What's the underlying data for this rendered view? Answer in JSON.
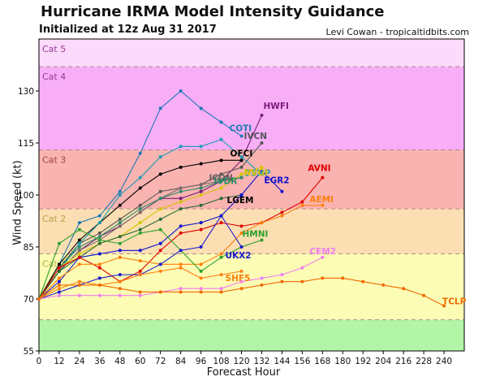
{
  "header": {
    "title": "Hurricane IRMA Model Intensity Guidance",
    "subtitle": "Initialized at 12z Aug 31 2017",
    "credit": "Levi Cowan - tropicaltidbits.com"
  },
  "chart_data": {
    "type": "line",
    "xlabel": "Forecast Hour",
    "ylabel": "Wind Speed (kt)",
    "xlim": [
      0,
      252
    ],
    "ylim": [
      55,
      145
    ],
    "xticks": [
      0,
      12,
      24,
      36,
      48,
      60,
      72,
      84,
      96,
      108,
      120,
      132,
      144,
      156,
      168,
      180,
      192,
      204,
      216,
      228,
      240
    ],
    "yticks": [
      55,
      70,
      85,
      100,
      115,
      130
    ],
    "bands": [
      {
        "label": "",
        "from": 55,
        "to": 64,
        "color": "#b2f5a7"
      },
      {
        "label": "Cat 1",
        "from": 64,
        "to": 83,
        "color": "#fcfcb5",
        "label_color": "#b8b04a"
      },
      {
        "label": "Cat 2",
        "from": 83,
        "to": 96,
        "color": "#fbdfb2",
        "label_color": "#b8a04a"
      },
      {
        "label": "Cat 3",
        "from": 96,
        "to": 113,
        "color": "#f9b3b0",
        "label_color": "#a04545"
      },
      {
        "label": "Cat 4",
        "from": 113,
        "to": 137,
        "color": "#f7aef7",
        "label_color": "#9a3a9a"
      },
      {
        "label": "Cat 5",
        "from": 137,
        "to": 145,
        "color": "#fbdafb",
        "label_color": "#9a3a9a"
      }
    ],
    "series": [
      {
        "name": "COTI",
        "color": "#1f77b4",
        "label_color": "#1f77b4",
        "x": [
          0,
          12,
          24,
          36,
          48,
          60,
          72,
          84,
          96,
          108,
          120
        ],
        "y": [
          70,
          80,
          92,
          94,
          101,
          112,
          125,
          130,
          125,
          121,
          117
        ]
      },
      {
        "name": "HWFI",
        "color": "#7a1a7a",
        "label_color": "#7a1a7a",
        "x": [
          0,
          12,
          24,
          36,
          48,
          60,
          72,
          84,
          96,
          108,
          120,
          132
        ],
        "y": [
          70,
          78,
          84,
          88,
          91,
          95,
          99,
          99,
          101,
          104,
          110,
          123
        ]
      },
      {
        "name": "IVCN",
        "color": "#555555",
        "label_color": "#555555",
        "x": [
          0,
          12,
          24,
          36,
          48,
          60,
          72,
          84,
          96,
          108,
          120,
          132
        ],
        "y": [
          70,
          79,
          86,
          89,
          93,
          97,
          101,
          102,
          103,
          106,
          108,
          115
        ]
      },
      {
        "name": "OFCI",
        "color": "#000000",
        "label_color": "#000000",
        "x": [
          0,
          12,
          24,
          36,
          48,
          60,
          72,
          84,
          96,
          108,
          120
        ],
        "y": [
          70,
          80,
          87,
          92,
          97,
          102,
          106,
          108,
          109,
          110,
          110
        ]
      },
      {
        "name": "DSHP",
        "color": "#1f9bb4",
        "label_color": "#1f9bb4",
        "x": [
          0,
          12,
          24,
          36,
          48,
          60,
          72,
          84,
          96,
          108,
          120,
          132
        ],
        "y": [
          70,
          78,
          86,
          92,
          100,
          105,
          111,
          114,
          114,
          116,
          111,
          106
        ]
      },
      {
        "name": "ICON",
        "color": "#7a6a6a",
        "label_color": "#6a5a5a",
        "x": [
          0,
          12,
          24,
          36,
          48,
          60,
          72,
          84,
          96,
          108,
          120
        ],
        "y": [
          70,
          78,
          84,
          87,
          91,
          95,
          99,
          102,
          103,
          104,
          105
        ]
      },
      {
        "name": "IVDR",
        "color": "#2a8a6a",
        "label_color": "#2a8a6a",
        "x": [
          0,
          12,
          24,
          36,
          48,
          60,
          72,
          84,
          96,
          108,
          120
        ],
        "y": [
          70,
          79,
          85,
          88,
          92,
          96,
          99,
          101,
          102,
          104,
          105
        ]
      },
      {
        "name": "NVGI",
        "color": "#d4c400",
        "label_color": "#d4c400",
        "x": [
          0,
          12,
          24,
          36,
          48,
          60,
          72,
          84,
          96,
          108,
          120,
          132
        ],
        "y": [
          70,
          79,
          83,
          86,
          88,
          92,
          96,
          98,
          100,
          102,
          106,
          108
        ]
      },
      {
        "name": "LGEM",
        "color": "#2a6a3a",
        "label_color": "#000000",
        "x": [
          0,
          12,
          24,
          36,
          48,
          60,
          72,
          84,
          96,
          108,
          120
        ],
        "y": [
          70,
          78,
          82,
          86,
          88,
          90,
          93,
          96,
          97,
          99,
          100
        ]
      },
      {
        "name": "EGR2",
        "color": "#1010d0",
        "label_color": "#1010d0",
        "x": [
          0,
          12,
          24,
          36,
          48,
          60,
          72,
          84,
          96,
          108,
          120,
          132,
          144
        ],
        "y": [
          70,
          75,
          82,
          83,
          84,
          84,
          86,
          91,
          92,
          94,
          100,
          107,
          101
        ]
      },
      {
        "name": "AVNI",
        "color": "#e00000",
        "label_color": "#e00000",
        "x": [
          0,
          12,
          24,
          36,
          48,
          60,
          72,
          84,
          96,
          108,
          120,
          132,
          144,
          156,
          168
        ],
        "y": [
          70,
          79,
          82,
          79,
          75,
          78,
          84,
          89,
          90,
          92,
          91,
          92,
          95,
          98,
          105
        ]
      },
      {
        "name": "AEMI",
        "color": "#ff7f0e",
        "label_color": "#ff7f0e",
        "x": [
          0,
          12,
          24,
          36,
          48,
          60,
          72,
          84,
          96,
          108,
          120,
          132,
          144,
          156,
          168
        ],
        "y": [
          70,
          76,
          80,
          80,
          82,
          81,
          80,
          80,
          80,
          83,
          89,
          92,
          94,
          97,
          97
        ]
      },
      {
        "name": "HMNI",
        "color": "#2ca02c",
        "label_color": "#2ca02c",
        "x": [
          0,
          12,
          24,
          36,
          48,
          60,
          72,
          84,
          96,
          108,
          120,
          132
        ],
        "y": [
          70,
          86,
          90,
          87,
          86,
          89,
          90,
          84,
          78,
          82,
          85,
          87
        ]
      },
      {
        "name": "UKX2",
        "color": "#1a1ad0",
        "label_color": "#1a1ad0",
        "x": [
          0,
          12,
          24,
          36,
          48,
          60,
          72,
          84,
          96,
          108,
          120
        ],
        "y": [
          70,
          72,
          74,
          76,
          77,
          77,
          80,
          84,
          85,
          94,
          85
        ]
      },
      {
        "name": "CEM2",
        "color": "#f07ef0",
        "label_color": "#f07ef0",
        "x": [
          0,
          12,
          24,
          36,
          48,
          60,
          72,
          84,
          96,
          108,
          120,
          132,
          144,
          156,
          168
        ],
        "y": [
          70,
          71,
          71,
          71,
          71,
          71,
          72,
          73,
          73,
          73,
          75,
          76,
          77,
          79,
          82
        ]
      },
      {
        "name": "SHF5",
        "color": "#ff7f0e",
        "label_color": "#ff7f0e",
        "x": [
          0,
          12,
          24,
          36,
          48,
          60,
          72,
          84,
          96,
          108,
          120
        ],
        "y": [
          70,
          73,
          75,
          74,
          75,
          77,
          78,
          79,
          76,
          77,
          78
        ]
      },
      {
        "name": "TCLP",
        "color": "#f06a00",
        "label_color": "#f06a00",
        "x": [
          0,
          12,
          24,
          36,
          48,
          60,
          72,
          84,
          96,
          108,
          120,
          132,
          144,
          156,
          168,
          180,
          192,
          204,
          216,
          228,
          240
        ],
        "y": [
          70,
          74,
          74,
          74,
          73,
          72,
          72,
          72,
          72,
          72,
          73,
          74,
          75,
          75,
          76,
          76,
          75,
          74,
          73,
          71,
          68
        ]
      }
    ]
  }
}
